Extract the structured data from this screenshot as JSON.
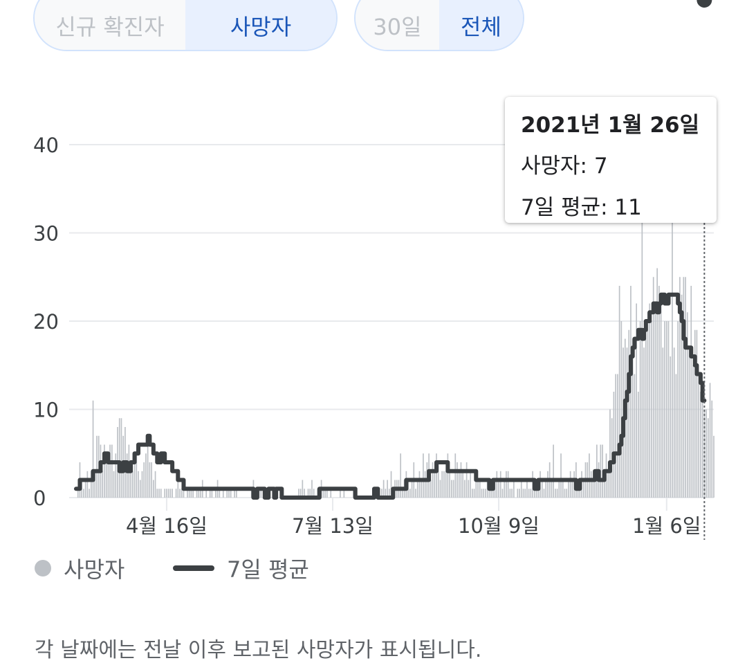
{
  "metric_toggle": {
    "options": [
      "신규 확진자",
      "사망자"
    ],
    "selected": "사망자"
  },
  "range_toggle": {
    "options": [
      "30일",
      "전체"
    ],
    "selected": "전체"
  },
  "tooltip": {
    "date": "2021년 1월 26일",
    "deaths": "사망자: 7",
    "avg": "7일 평균: 11"
  },
  "legend": {
    "deaths": "사망자",
    "avg": "7일 평균"
  },
  "footnote": "각 날짜에는 전날 이후 보고된 사망자가 표시됩니다.",
  "colors": {
    "bar": "#bdc1c6",
    "line": "#3c4043",
    "grid": "#e8eaed",
    "accent": "#1a56b8"
  },
  "chart_data": {
    "type": "bar",
    "title": "",
    "xlabel": "",
    "ylabel": "",
    "ylim": [
      0,
      45
    ],
    "y_ticks": [
      0,
      10,
      20,
      30,
      40
    ],
    "x_ticks": [
      {
        "label": "4월 16일",
        "index": 48
      },
      {
        "label": "7월 13일",
        "index": 136
      },
      {
        "label": "10월 9일",
        "index": 224
      },
      {
        "label": "1월 6일",
        "index": 313
      }
    ],
    "highlight_index": 333,
    "series": [
      {
        "name": "사망자",
        "type": "bar",
        "values": [
          0,
          1,
          4,
          2,
          1,
          2,
          3,
          1,
          3,
          11,
          3,
          7,
          7,
          6,
          3,
          6,
          5,
          4,
          6,
          6,
          3,
          5,
          8,
          9,
          9,
          7,
          8,
          5,
          6,
          4,
          3,
          4,
          5,
          3,
          2,
          3,
          4,
          5,
          6,
          4,
          4,
          2,
          3,
          1,
          1,
          1,
          0,
          1,
          1,
          1,
          1,
          1,
          0,
          1,
          2,
          1,
          1,
          1,
          0,
          1,
          1,
          1,
          1,
          0,
          1,
          1,
          1,
          2,
          0,
          1,
          0,
          1,
          1,
          0,
          1,
          2,
          1,
          0,
          1,
          0,
          1,
          1,
          1,
          0,
          1,
          1,
          0,
          0,
          0,
          0,
          0,
          0,
          0,
          1,
          2,
          1,
          0,
          1,
          1,
          0,
          1,
          1,
          0,
          0,
          0,
          1,
          0,
          0,
          0,
          0,
          0,
          0,
          0,
          0,
          0,
          0,
          0,
          0,
          1,
          1,
          2,
          1,
          0,
          1,
          1,
          2,
          1,
          0,
          1,
          1,
          2,
          1,
          1,
          1,
          0,
          1,
          0,
          0,
          0,
          0,
          1,
          0,
          1,
          0,
          0,
          0,
          0,
          1,
          1,
          0,
          0,
          0,
          0,
          0,
          0,
          0,
          0,
          0,
          1,
          0,
          0,
          0,
          1,
          2,
          1,
          2,
          1,
          3,
          1,
          2,
          2,
          2,
          5,
          1,
          2,
          3,
          2,
          1,
          2,
          4,
          1,
          2,
          3,
          2,
          5,
          3,
          4,
          5,
          2,
          4,
          3,
          5,
          4,
          2,
          3,
          3,
          3,
          5,
          3,
          2,
          2,
          5,
          4,
          3,
          4,
          3,
          2,
          4,
          2,
          3,
          1,
          1,
          3,
          2,
          2,
          1,
          1,
          1,
          2,
          1,
          2,
          1,
          2,
          3,
          2,
          3,
          1,
          2,
          3,
          3,
          1,
          1,
          2,
          0,
          1,
          1,
          2,
          1,
          1,
          2,
          1,
          1,
          3,
          1,
          1,
          2,
          3,
          2,
          1,
          2,
          3,
          4,
          2,
          6,
          1,
          1,
          2,
          5,
          2,
          1,
          1,
          2,
          3,
          2,
          3,
          4,
          1,
          1,
          3,
          2,
          4,
          4,
          5,
          3,
          2,
          3,
          6,
          4,
          6,
          6,
          3,
          5,
          3,
          10,
          9,
          12,
          14,
          14,
          24,
          20,
          17,
          18,
          17,
          19,
          24,
          18,
          14,
          22,
          12,
          20,
          35,
          17,
          20,
          21,
          22,
          20,
          25,
          21,
          26,
          24,
          22,
          17,
          20,
          20,
          20,
          16,
          32,
          17,
          14,
          20,
          25,
          23,
          25,
          25,
          21,
          17,
          24,
          15,
          19,
          19,
          14,
          12,
          11,
          10,
          10,
          9,
          13,
          11,
          7
        ]
      },
      {
        "name": "7일 평균",
        "type": "line",
        "values": [
          1,
          1,
          2,
          2,
          2,
          2,
          2,
          2,
          2,
          3,
          3,
          3,
          3,
          4,
          4,
          5,
          5,
          4,
          4,
          4,
          4,
          4,
          4,
          3,
          3,
          4,
          4,
          3,
          3,
          4,
          4,
          5,
          5,
          6,
          6,
          6,
          6,
          6,
          7,
          6,
          6,
          5,
          5,
          4,
          4,
          5,
          5,
          4,
          4,
          4,
          4,
          3,
          3,
          3,
          2,
          2,
          2,
          1,
          1,
          1,
          1,
          1,
          1,
          1,
          1,
          1,
          1,
          1,
          1,
          1,
          1,
          1,
          1,
          1,
          1,
          1,
          1,
          1,
          1,
          1,
          1,
          1,
          1,
          1,
          1,
          1,
          1,
          1,
          1,
          1,
          1,
          1,
          1,
          1,
          0,
          0,
          1,
          1,
          1,
          1,
          0,
          0,
          1,
          1,
          1,
          0,
          1,
          1,
          1,
          0,
          0,
          0,
          0,
          0,
          0,
          0,
          0,
          0,
          0,
          0,
          0,
          0,
          0,
          0,
          0,
          0,
          0,
          0,
          0,
          1,
          1,
          1,
          1,
          1,
          1,
          1,
          1,
          1,
          1,
          1,
          1,
          1,
          1,
          1,
          1,
          1,
          1,
          1,
          0,
          0,
          0,
          0,
          0,
          0,
          0,
          0,
          0,
          0,
          1,
          1,
          0,
          0,
          0,
          0,
          0,
          0,
          0,
          0,
          1,
          1,
          1,
          1,
          1,
          1,
          1,
          2,
          2,
          2,
          2,
          2,
          2,
          2,
          2,
          2,
          2,
          2,
          2,
          3,
          3,
          3,
          3,
          4,
          4,
          4,
          4,
          4,
          4,
          3,
          3,
          3,
          3,
          3,
          3,
          3,
          3,
          3,
          3,
          3,
          3,
          3,
          3,
          3,
          2,
          2,
          2,
          2,
          2,
          2,
          2,
          1,
          1,
          2,
          2,
          2,
          2,
          2,
          2,
          2,
          2,
          2,
          2,
          2,
          2,
          2,
          2,
          2,
          2,
          2,
          2,
          2,
          2,
          2,
          2,
          1,
          1,
          2,
          2,
          2,
          2,
          2,
          2,
          2,
          2,
          2,
          2,
          2,
          2,
          2,
          2,
          2,
          2,
          2,
          2,
          2,
          2,
          1,
          1,
          2,
          2,
          2,
          2,
          2,
          2,
          2,
          2,
          3,
          3,
          2,
          2,
          2,
          3,
          3,
          3,
          4,
          4,
          5,
          5,
          5,
          6,
          7,
          9,
          11,
          12,
          14,
          16,
          17,
          18,
          18,
          19,
          19,
          18,
          19,
          20,
          20,
          21,
          21,
          22,
          22,
          21,
          22,
          23,
          23,
          22,
          22,
          23,
          23,
          23,
          23,
          23,
          22,
          21,
          20,
          18,
          17,
          17,
          17,
          16,
          16,
          15,
          14,
          14,
          13,
          11
        ]
      }
    ]
  }
}
